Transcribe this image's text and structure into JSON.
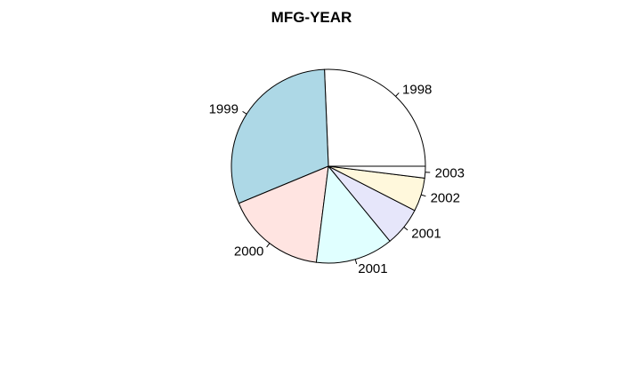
{
  "chart_data": {
    "type": "pie",
    "title": "MFG-YEAR",
    "categories": [
      "1998",
      "1999",
      "2000",
      "2001",
      "2001",
      "2002",
      "2003"
    ],
    "values": [
      24.8,
      29.6,
      16.2,
      12.5,
      6.3,
      5.4,
      1.9
    ],
    "colors": [
      "#ffffff",
      "#add8e6",
      "#ffe4e1",
      "#e0ffff",
      "#e6e6fa",
      "#fff8dc",
      "#ffffff"
    ],
    "start_angle_deg": 0,
    "direction": "counterclockwise"
  }
}
